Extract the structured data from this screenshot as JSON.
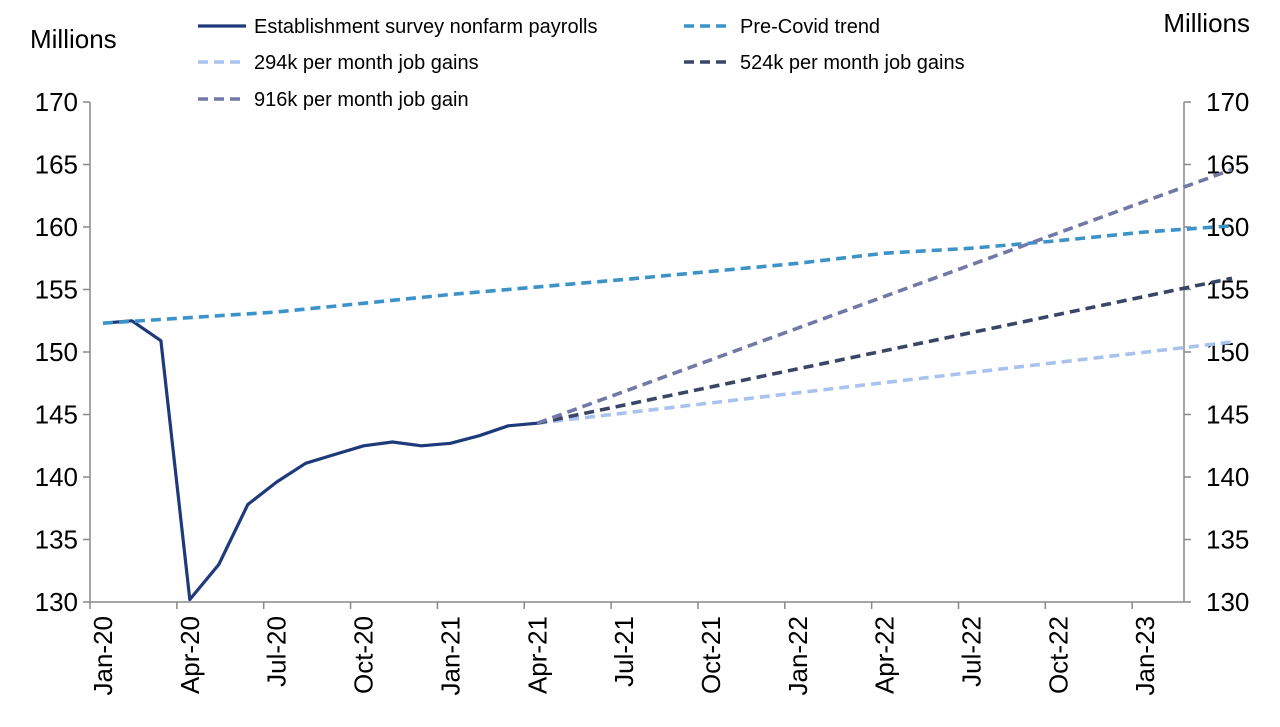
{
  "chart_data": {
    "type": "line",
    "ylabel_left": "Millions",
    "ylabel_right": "Millions",
    "ylim": [
      130,
      170
    ],
    "yticks": [
      130,
      135,
      140,
      145,
      150,
      155,
      160,
      165,
      170
    ],
    "xlim": [
      "2020-01",
      "2023-03"
    ],
    "xticks": [
      "Jan-20",
      "Apr-20",
      "Jul-20",
      "Oct-20",
      "Jan-21",
      "Apr-21",
      "Jul-21",
      "Oct-21",
      "Jan-22",
      "Apr-22",
      "Jul-22",
      "Oct-22",
      "Jan-23"
    ],
    "grid": false,
    "legend_position": "top",
    "series": [
      {
        "name": "Establishment survey nonfarm payrolls",
        "style": "solid",
        "color": "#1f3a7a",
        "points": [
          [
            "2020-01",
            152.3
          ],
          [
            "2020-02",
            152.5
          ],
          [
            "2020-03",
            150.9
          ],
          [
            "2020-04",
            130.2
          ],
          [
            "2020-05",
            133.0
          ],
          [
            "2020-06",
            137.8
          ],
          [
            "2020-07",
            139.6
          ],
          [
            "2020-08",
            141.1
          ],
          [
            "2020-09",
            141.8
          ],
          [
            "2020-10",
            142.5
          ],
          [
            "2020-11",
            142.8
          ],
          [
            "2020-12",
            142.5
          ],
          [
            "2021-01",
            142.7
          ],
          [
            "2021-02",
            143.3
          ],
          [
            "2021-03",
            144.1
          ],
          [
            "2021-04",
            144.3
          ]
        ]
      },
      {
        "name": "Pre-Covid trend",
        "style": "dashed",
        "color": "#3d93c9",
        "points": [
          [
            "2020-01",
            152.3
          ],
          [
            "2020-07",
            153.2
          ],
          [
            "2021-01",
            154.6
          ],
          [
            "2021-07",
            155.8
          ],
          [
            "2022-01",
            157.1
          ],
          [
            "2022-04",
            157.9
          ],
          [
            "2022-07",
            158.3
          ],
          [
            "2022-10",
            158.9
          ],
          [
            "2023-01",
            159.6
          ],
          [
            "2023-04",
            160.1
          ]
        ]
      },
      {
        "name": "294k per month job gains",
        "style": "dashed",
        "color": "#a8c3ee",
        "points": [
          [
            "2021-04",
            144.3
          ],
          [
            "2023-04",
            150.8
          ]
        ]
      },
      {
        "name": "524k per month job gains",
        "style": "dashed",
        "color": "#3b4566",
        "points": [
          [
            "2021-04",
            144.3
          ],
          [
            "2023-04",
            155.9
          ]
        ]
      },
      {
        "name": "916k per month job gain",
        "style": "dashed",
        "color": "#7279a6",
        "points": [
          [
            "2021-04",
            144.3
          ],
          [
            "2023-04",
            164.6
          ]
        ]
      }
    ]
  }
}
